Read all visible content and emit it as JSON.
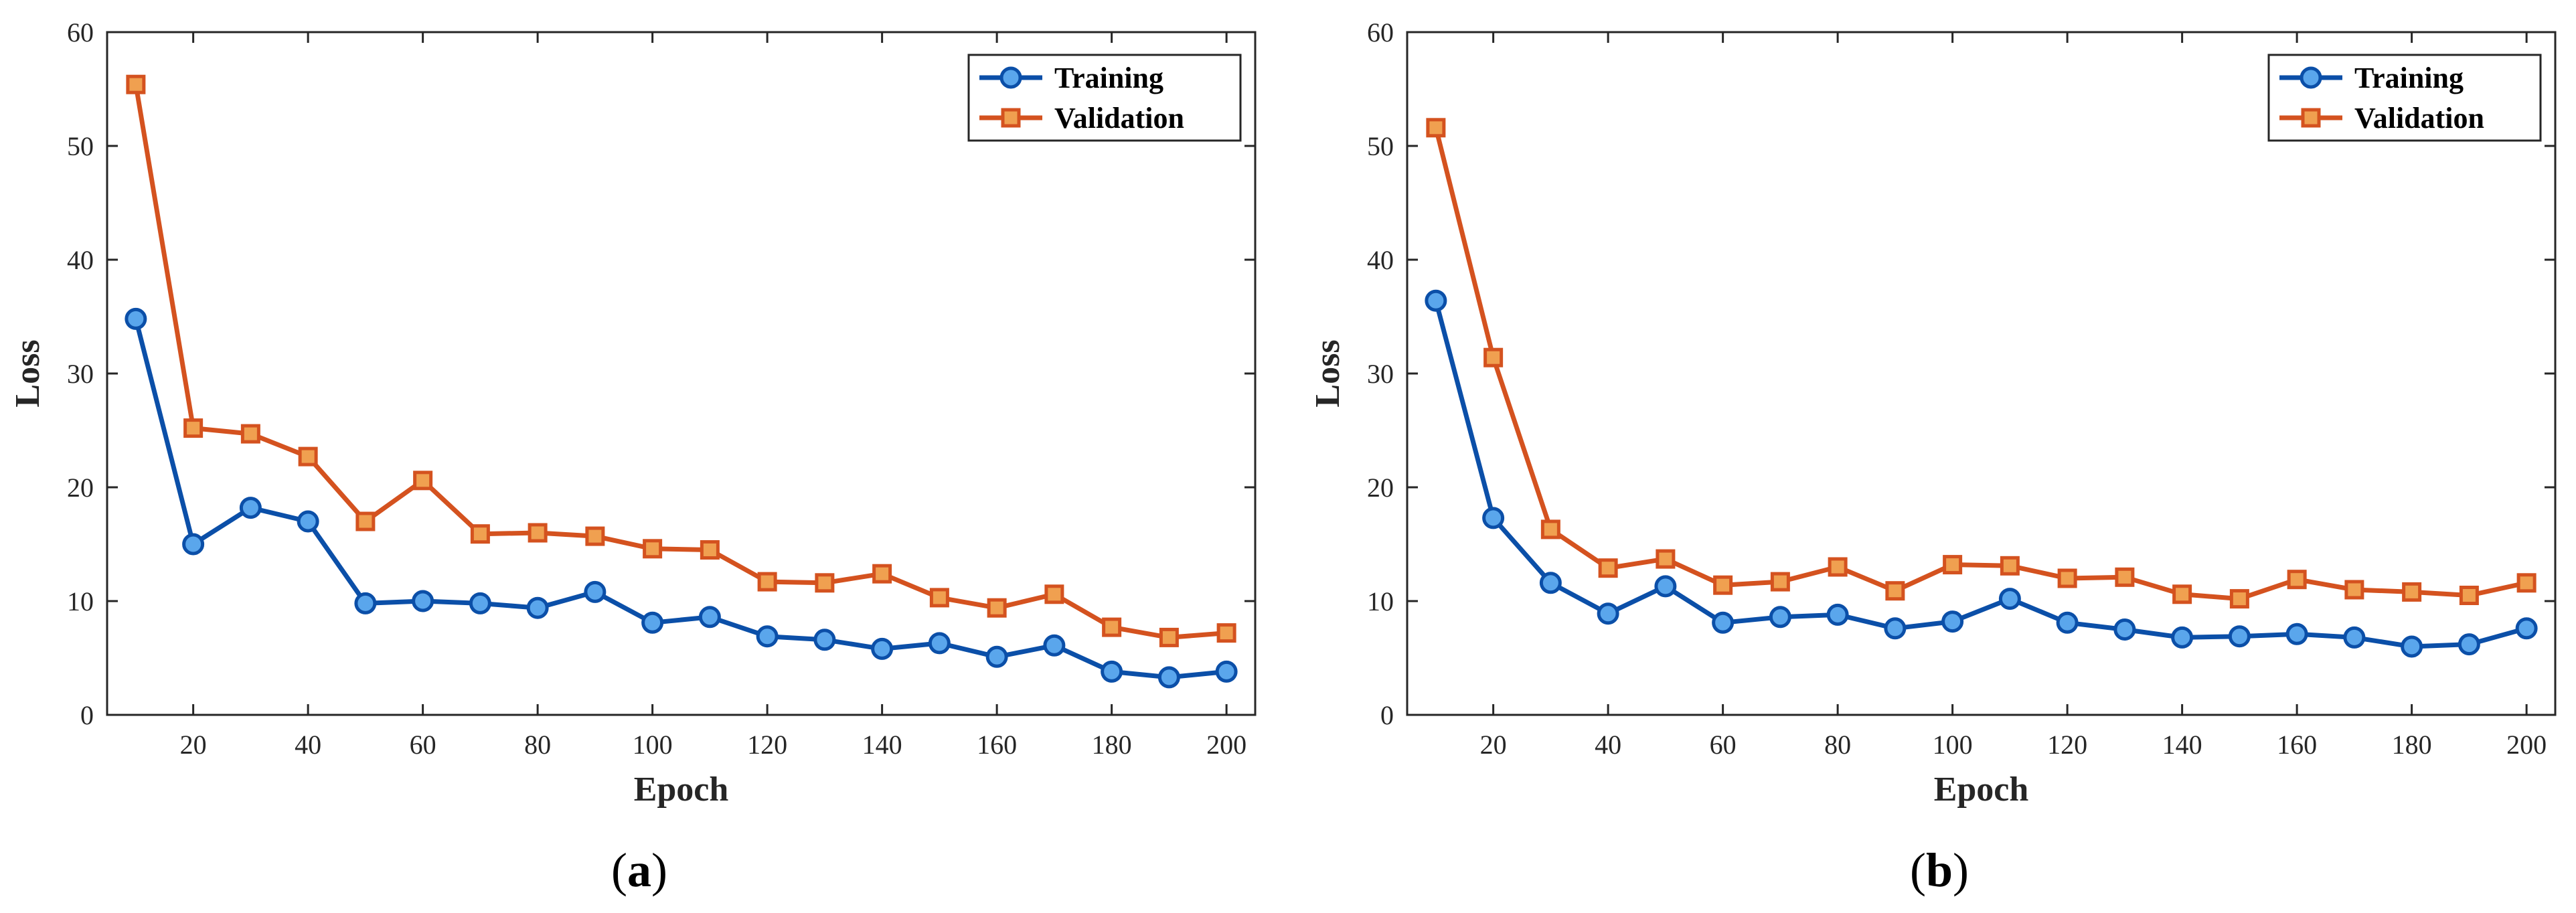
{
  "chart_data": [
    {
      "type": "line",
      "caption_parts": [
        "(",
        "a",
        ")"
      ],
      "xlabel": "Epoch",
      "ylabel": "Loss",
      "xlim": [
        5,
        205
      ],
      "ylim": [
        0,
        60
      ],
      "xticks": [
        20,
        40,
        60,
        80,
        100,
        120,
        140,
        160,
        180,
        200
      ],
      "yticks": [
        0,
        10,
        20,
        30,
        40,
        50,
        60
      ],
      "legend_position": "top-right",
      "grid": false,
      "x": [
        10,
        20,
        30,
        40,
        50,
        60,
        70,
        80,
        90,
        100,
        110,
        120,
        130,
        140,
        150,
        160,
        170,
        180,
        190,
        200
      ],
      "series": [
        {
          "name": "Training",
          "color": "#0b4fa8",
          "marker_fill": "#5aa6ec",
          "marker": "circle",
          "values": [
            34.8,
            15.0,
            18.2,
            17.0,
            9.8,
            10.0,
            9.8,
            9.4,
            10.8,
            8.1,
            8.6,
            6.9,
            6.6,
            5.8,
            6.3,
            5.1,
            6.1,
            3.8,
            3.3,
            3.8
          ]
        },
        {
          "name": "Validation",
          "color": "#d4521f",
          "marker_fill": "#f0a050",
          "marker": "square",
          "values": [
            55.4,
            25.2,
            24.7,
            22.7,
            17.0,
            20.6,
            15.9,
            16.0,
            15.7,
            14.6,
            14.5,
            11.7,
            11.6,
            12.4,
            10.3,
            9.4,
            10.6,
            7.7,
            6.8,
            7.2
          ]
        }
      ]
    },
    {
      "type": "line",
      "caption_parts": [
        "(",
        "b",
        ")"
      ],
      "xlabel": "Epoch",
      "ylabel": "Loss",
      "xlim": [
        5,
        205
      ],
      "ylim": [
        0,
        60
      ],
      "xticks": [
        20,
        40,
        60,
        80,
        100,
        120,
        140,
        160,
        180,
        200
      ],
      "yticks": [
        0,
        10,
        20,
        30,
        40,
        50,
        60
      ],
      "legend_position": "top-right",
      "grid": false,
      "x": [
        10,
        20,
        30,
        40,
        50,
        60,
        70,
        80,
        90,
        100,
        110,
        120,
        130,
        140,
        150,
        160,
        170,
        180,
        190,
        200
      ],
      "series": [
        {
          "name": "Training",
          "color": "#0b4fa8",
          "marker_fill": "#5aa6ec",
          "marker": "circle",
          "values": [
            36.4,
            17.3,
            11.6,
            8.9,
            11.3,
            8.1,
            8.6,
            8.8,
            7.6,
            8.2,
            10.2,
            8.1,
            7.5,
            6.8,
            6.9,
            7.1,
            6.8,
            6.0,
            6.2,
            7.6
          ]
        },
        {
          "name": "Validation",
          "color": "#d4521f",
          "marker_fill": "#f0a050",
          "marker": "square",
          "values": [
            51.6,
            31.4,
            16.3,
            12.9,
            13.7,
            11.4,
            11.7,
            13.0,
            10.9,
            13.2,
            13.1,
            12.0,
            12.1,
            10.6,
            10.2,
            11.9,
            11.0,
            10.8,
            10.5,
            11.6
          ]
        }
      ]
    }
  ]
}
